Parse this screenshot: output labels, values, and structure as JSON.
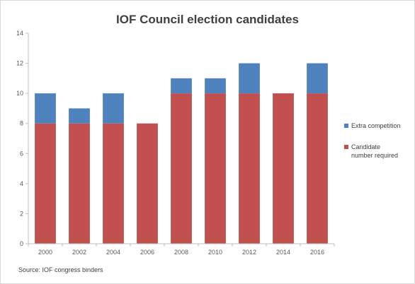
{
  "chart_data": {
    "type": "bar",
    "stacked": true,
    "title": "IOF Council election candidates",
    "xlabel": "",
    "ylabel": "",
    "categories": [
      "2000",
      "2002",
      "2004",
      "2006",
      "2008",
      "2010",
      "2012",
      "2014",
      "2016"
    ],
    "series": [
      {
        "name": "Candidate number required",
        "values": [
          8,
          8,
          8,
          8,
          10,
          10,
          10,
          10,
          10
        ],
        "color": "#c0504d"
      },
      {
        "name": "Extra competition",
        "values": [
          2,
          1,
          2,
          0,
          1,
          1,
          2,
          0,
          2
        ],
        "color": "#4f81bd"
      }
    ],
    "ylim": [
      0,
      14
    ],
    "yticks": [
      "0",
      "2",
      "4",
      "6",
      "8",
      "10",
      "12",
      "14"
    ],
    "grid": false,
    "legend_position": "right",
    "legend_order": [
      "Extra competition",
      "Candidate number required"
    ],
    "source": "Source:  IOF congress binders"
  }
}
